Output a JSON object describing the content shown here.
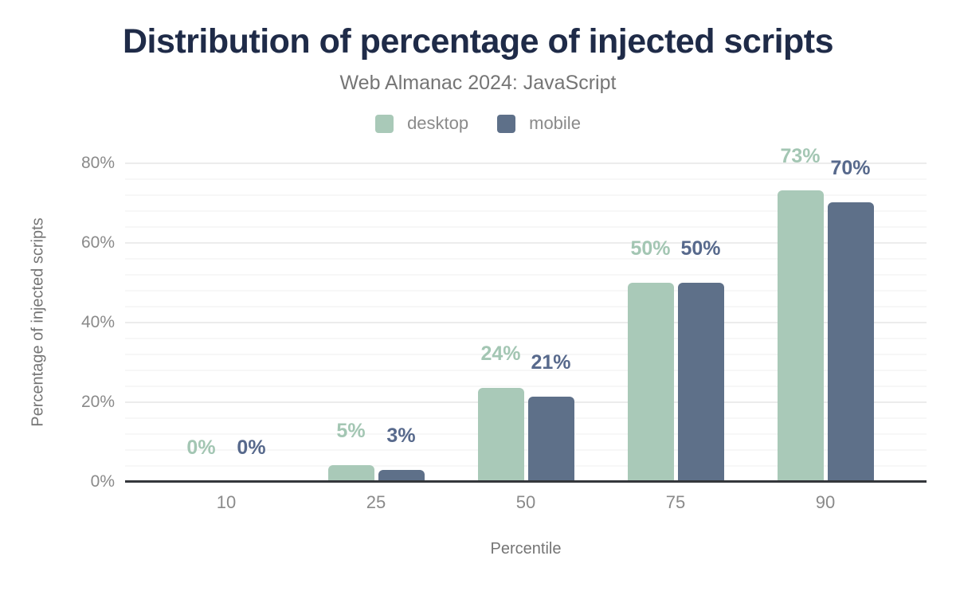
{
  "title": "Distribution of percentage of injected scripts",
  "subtitle": "Web Almanac 2024: JavaScript",
  "chart_data": {
    "type": "bar",
    "title": "Distribution of percentage of injected scripts",
    "subtitle": "Web Almanac 2024: JavaScript",
    "xlabel": "Percentile",
    "ylabel": "Percentage of injected scripts",
    "categories": [
      "10",
      "25",
      "50",
      "75",
      "90"
    ],
    "series": [
      {
        "name": "desktop",
        "color": "#a9c9b8",
        "label_color": "#a3c6b3",
        "values": [
          0,
          5,
          24,
          50,
          73
        ],
        "labels": [
          "0%",
          "5%",
          "24%",
          "50%",
          "73%"
        ],
        "plotted": [
          0,
          4.3,
          23.6,
          50,
          73.2
        ]
      },
      {
        "name": "mobile",
        "color": "#5e7089",
        "label_color": "#57698c",
        "values": [
          0,
          3,
          21,
          50,
          70
        ],
        "labels": [
          "0%",
          "3%",
          "21%",
          "50%",
          "70%"
        ],
        "plotted": [
          0,
          3,
          21.4,
          50,
          70.3
        ]
      }
    ],
    "ylim": [
      0,
      80
    ],
    "yticks": [
      {
        "value": 0,
        "label": "0%"
      },
      {
        "value": 20,
        "label": "20%"
      },
      {
        "value": 40,
        "label": "40%"
      },
      {
        "value": 60,
        "label": "60%"
      },
      {
        "value": 80,
        "label": "80%"
      }
    ],
    "grid": {
      "minor_step": 4,
      "major_step": 20,
      "minor_color": "#f7f7f7",
      "major_color": "#ececec"
    },
    "legend_position": "top"
  },
  "colors": {
    "title": "#1f2b48",
    "subtitle": "#757575",
    "axis_line": "#34373b",
    "tick_label": "#8a8a8a",
    "axis_title": "#757575"
  }
}
